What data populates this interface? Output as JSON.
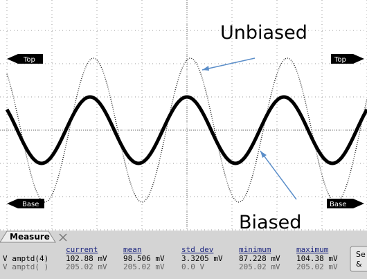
{
  "annotations": {
    "unbiased": "Unbiased",
    "biased": "Biased"
  },
  "markers": {
    "top_left": "Top",
    "top_right": "Top",
    "base_left": "Base",
    "base_right": "Base"
  },
  "measure": {
    "title": "Measure",
    "columns": [
      "current",
      "mean",
      "std dev",
      "minimum",
      "maximum"
    ],
    "rows": [
      {
        "label": "V amptd(4)",
        "cells": [
          "102.88 mV",
          "98.506 mV",
          "3.3205 mV",
          "87.228 mV",
          "104.38 mV"
        ]
      },
      {
        "label": "V amptd( )",
        "cells": [
          "205.02 mV",
          "205.02 mV",
          "0.0 V",
          "205.02 mV",
          "205.02 mV"
        ]
      }
    ]
  },
  "button": {
    "line_1": "Se",
    "line_2": "&"
  }
}
